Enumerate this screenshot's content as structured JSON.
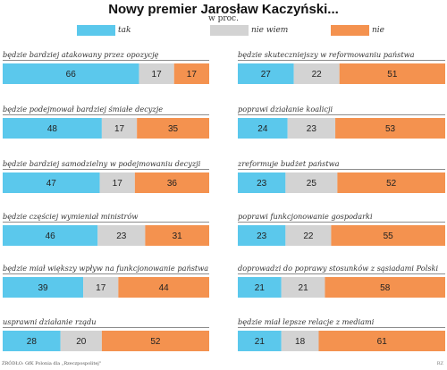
{
  "chart_data": {
    "type": "bar",
    "orientation": "horizontal-stacked-100",
    "title": "Nowy premier Jarosław Kaczyński...",
    "subtitle": "w proc.",
    "legend_position": "top",
    "series": [
      {
        "name": "tak",
        "color": "#5bc8ec"
      },
      {
        "name": "nie wiem",
        "color": "#d3d3d3"
      },
      {
        "name": "nie",
        "color": "#f4924f"
      }
    ],
    "items": [
      {
        "label": "będzie bardziej atakowany przez opozycję",
        "values": [
          66,
          17,
          17
        ]
      },
      {
        "label": "będzie podejmował bardziej śmiałe decyzje",
        "values": [
          48,
          17,
          35
        ]
      },
      {
        "label": "będzie bardziej samodzielny w podejmowaniu decyzji",
        "values": [
          47,
          17,
          36
        ]
      },
      {
        "label": "będzie częściej wymieniał ministrów",
        "values": [
          46,
          23,
          31
        ]
      },
      {
        "label": "będzie miał większy wpływ na funkcjonowanie państwa",
        "values": [
          39,
          17,
          44
        ]
      },
      {
        "label": "usprawni działanie rządu",
        "values": [
          28,
          20,
          52
        ]
      },
      {
        "label": "będzie skuteczniejszy w reformowaniu państwa",
        "values": [
          27,
          22,
          51
        ]
      },
      {
        "label": "poprawi działanie koalicji",
        "values": [
          24,
          23,
          53
        ]
      },
      {
        "label": "zreformuje budżet państwa",
        "values": [
          23,
          25,
          52
        ]
      },
      {
        "label": "poprawi funkcjonowanie gospodarki",
        "values": [
          23,
          22,
          55
        ]
      },
      {
        "label": "doprowadzi do poprawy stosunków z sąsiadami Polski",
        "values": [
          21,
          21,
          58
        ]
      },
      {
        "label": "będzie miał lepsze relacje z mediami",
        "values": [
          21,
          18,
          61
        ]
      }
    ],
    "source": "ŹRÓDŁO: GfK Polonia dla „Rzeczpospolitej\"",
    "credit": "RZ"
  }
}
